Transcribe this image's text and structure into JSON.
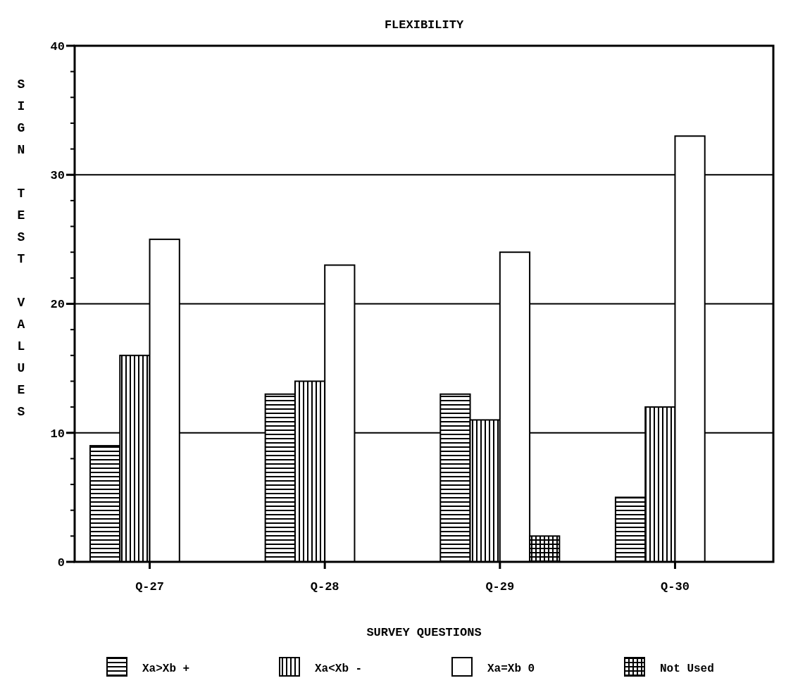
{
  "chart_data": {
    "type": "bar",
    "title": "FLEXIBILITY",
    "xlabel": "SURVEY QUESTIONS",
    "ylabel": "SIGN TEST VALUES",
    "categories": [
      "Q-27",
      "Q-28",
      "Q-29",
      "Q-30"
    ],
    "series": [
      {
        "name": "Xa>Xb +",
        "color": "#000000",
        "values": [
          9,
          13,
          13,
          5
        ]
      },
      {
        "name": "Xa<Xb -",
        "color": "#000000",
        "values": [
          16,
          14,
          11,
          12
        ]
      },
      {
        "name": "Xa=Xb 0",
        "color": "#000000",
        "values": [
          25,
          23,
          24,
          33
        ]
      },
      {
        "name": "Not Used",
        "color": "#000000",
        "values": [
          0,
          0,
          2,
          0
        ]
      }
    ],
    "ylim": [
      0,
      40
    ],
    "yticks": [
      0,
      10,
      20,
      30,
      40
    ],
    "grid": "y",
    "legend": "bottom"
  }
}
